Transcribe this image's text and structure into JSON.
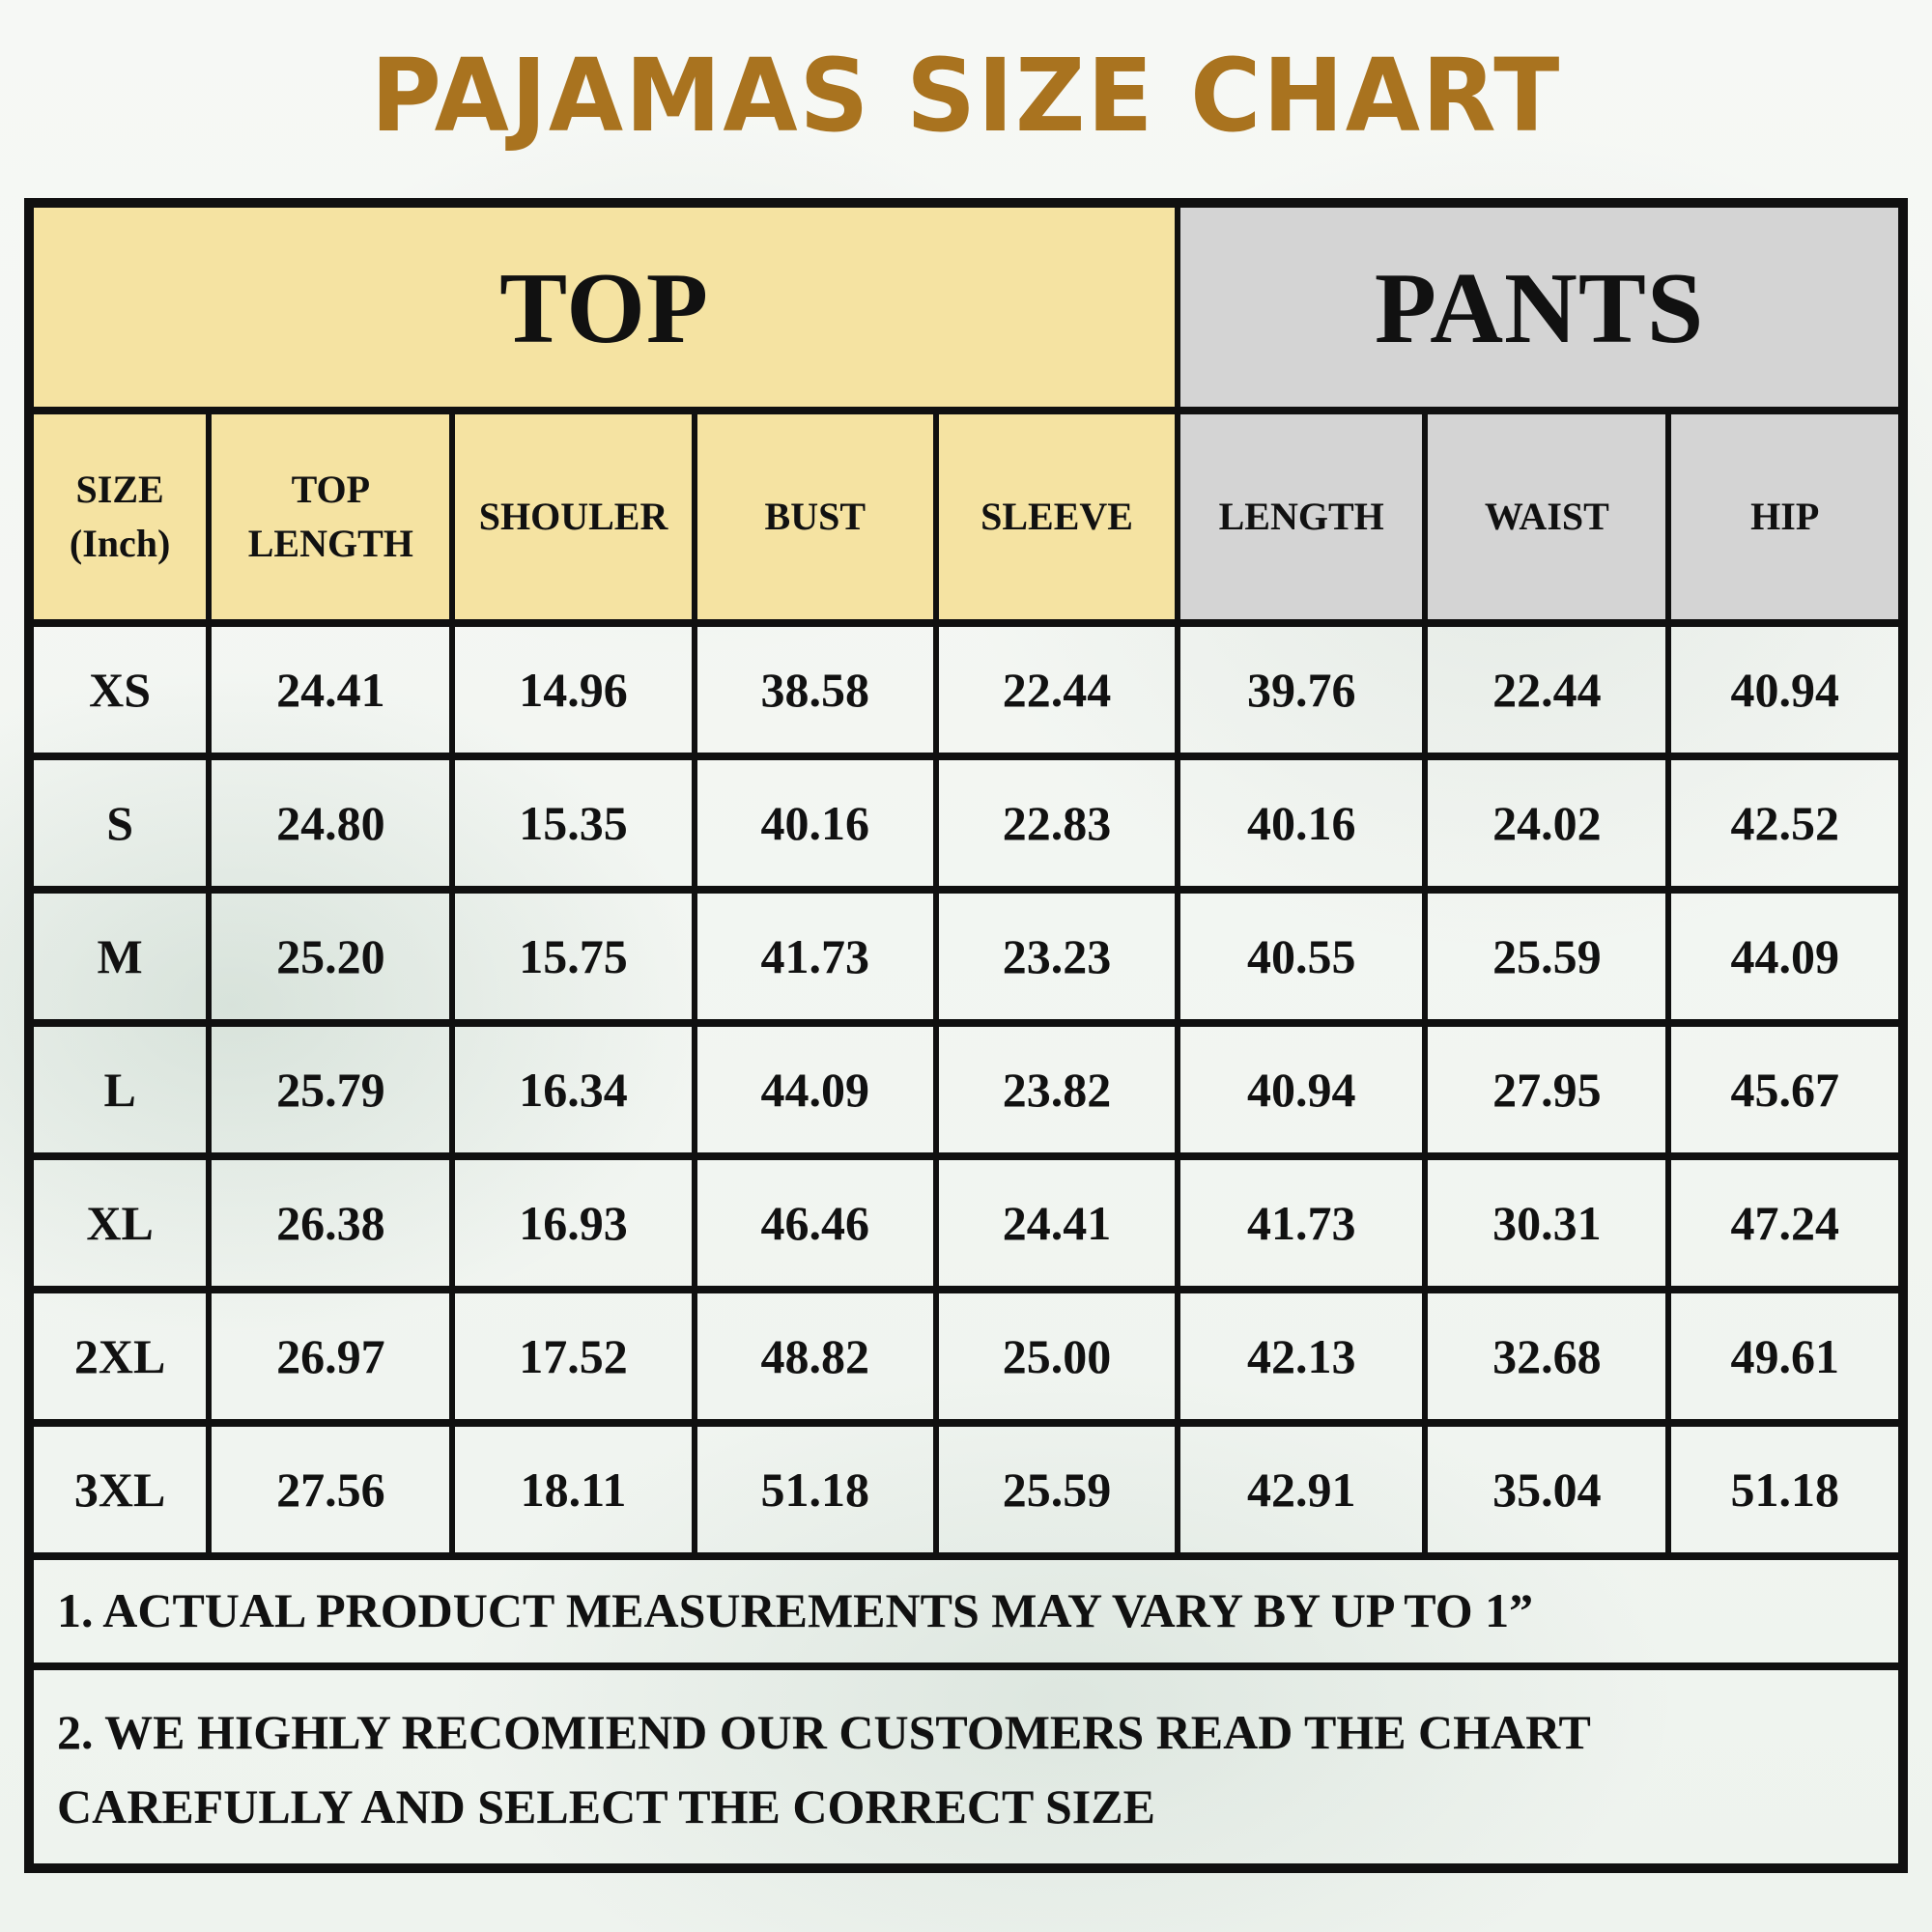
{
  "title": "PAJAMAS SIZE CHART",
  "colors": {
    "title_text": "#a9731f",
    "top_section_bg": "#f5e3a2",
    "pants_section_bg": "#d4d4d4",
    "table_border": "#101010",
    "body_text": "#111111",
    "page_background": "#f3f6f2"
  },
  "table": {
    "group_headers": [
      {
        "label": "TOP",
        "colspan": 5
      },
      {
        "label": "PANTS",
        "colspan": 3
      }
    ],
    "top_col_count": 5,
    "columns": [
      {
        "lines": [
          "SIZE",
          "(Inch)"
        ]
      },
      {
        "lines": [
          "TOP",
          "LENGTH"
        ]
      },
      {
        "lines": [
          "SHOULER"
        ]
      },
      {
        "lines": [
          "BUST"
        ]
      },
      {
        "lines": [
          "SLEEVE"
        ]
      },
      {
        "lines": [
          "LENGTH"
        ]
      },
      {
        "lines": [
          "WAIST"
        ]
      },
      {
        "lines": [
          "HIP"
        ]
      }
    ],
    "rows": [
      {
        "size": "XS",
        "values": [
          "24.41",
          "14.96",
          "38.58",
          "22.44",
          "39.76",
          "22.44",
          "40.94"
        ]
      },
      {
        "size": "S",
        "values": [
          "24.80",
          "15.35",
          "40.16",
          "22.83",
          "40.16",
          "24.02",
          "42.52"
        ]
      },
      {
        "size": "M",
        "values": [
          "25.20",
          "15.75",
          "41.73",
          "23.23",
          "40.55",
          "25.59",
          "44.09"
        ]
      },
      {
        "size": "L",
        "values": [
          "25.79",
          "16.34",
          "44.09",
          "23.82",
          "40.94",
          "27.95",
          "45.67"
        ]
      },
      {
        "size": "XL",
        "values": [
          "26.38",
          "16.93",
          "46.46",
          "24.41",
          "41.73",
          "30.31",
          "47.24"
        ]
      },
      {
        "size": "2XL",
        "values": [
          "26.97",
          "17.52",
          "48.82",
          "25.00",
          "42.13",
          "32.68",
          "49.61"
        ]
      },
      {
        "size": "3XL",
        "values": [
          "27.56",
          "18.11",
          "51.18",
          "25.59",
          "42.91",
          "35.04",
          "51.18"
        ]
      }
    ]
  },
  "notes": [
    "1. ACTUAL PRODUCT MEASUREMENTS MAY VARY BY UP TO 1”",
    "2. WE HIGHLY RECOMIEND OUR CUSTOMERS READ THE CHART CAREFULLY AND SELECT THE CORRECT SIZE"
  ]
}
